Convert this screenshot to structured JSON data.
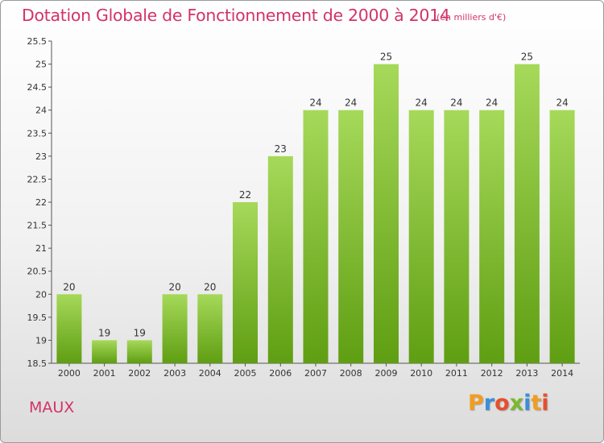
{
  "header": {
    "title": "Dotation Globale de Fonctionnement de 2000 à 2014",
    "subtitle": "(en milliers d'€)"
  },
  "footer": {
    "place": "MAUX",
    "logo": "Proxiti",
    "logo_colors": [
      "#f39c1f",
      "#3b8ed8",
      "#e64f2e",
      "#7cb82f",
      "#3b8ed8",
      "#f39c1f",
      "#e64f2e"
    ]
  },
  "colors": {
    "bar_top": "#a6d95a",
    "bar_bottom": "#5f9e12",
    "title": "#d2336a"
  },
  "chart_data": {
    "type": "bar",
    "categories": [
      "2000",
      "2001",
      "2002",
      "2003",
      "2004",
      "2005",
      "2006",
      "2007",
      "2008",
      "2009",
      "2010",
      "2011",
      "2012",
      "2013",
      "2014"
    ],
    "values": [
      20,
      19,
      19,
      20,
      20,
      22,
      23,
      24,
      24,
      25,
      24,
      24,
      24,
      25,
      24
    ],
    "value_labels": [
      "20",
      "19",
      "19",
      "20",
      "20",
      "22",
      "23",
      "24",
      "24",
      "25",
      "24",
      "24",
      "24",
      "25",
      "24"
    ],
    "y_ticks": [
      "18.5",
      "19",
      "19.5",
      "20",
      "20.5",
      "21",
      "21.5",
      "22",
      "22.5",
      "23",
      "23.5",
      "24",
      "24.5",
      "25",
      "25.5"
    ],
    "ylim": [
      18.5,
      25.5
    ],
    "grid": false,
    "legend": "none"
  }
}
